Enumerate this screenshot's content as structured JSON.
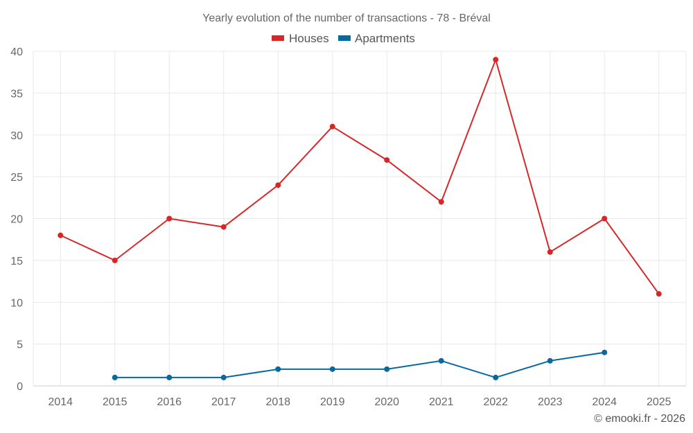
{
  "chart_data": {
    "type": "line",
    "title": "Yearly evolution of the number of transactions - 78 - Bréval",
    "xlabel": "",
    "ylabel": "",
    "categories": [
      "2014",
      "2015",
      "2016",
      "2017",
      "2018",
      "2019",
      "2020",
      "2021",
      "2022",
      "2023",
      "2024",
      "2025"
    ],
    "series": [
      {
        "name": "Houses",
        "color": "#d62728",
        "values": [
          18,
          15,
          20,
          19,
          24,
          31,
          27,
          22,
          39,
          16,
          20,
          11
        ]
      },
      {
        "name": "Apartments",
        "color": "#0868a0",
        "values": [
          null,
          1,
          1,
          1,
          2,
          2,
          2,
          3,
          1,
          3,
          4,
          null
        ]
      }
    ],
    "ylim": [
      0,
      40
    ],
    "yticks": [
      0,
      5,
      10,
      15,
      20,
      25,
      30,
      35,
      40
    ],
    "grid": true,
    "legend": "top-center"
  },
  "credit": "© emooki.fr - 2026"
}
